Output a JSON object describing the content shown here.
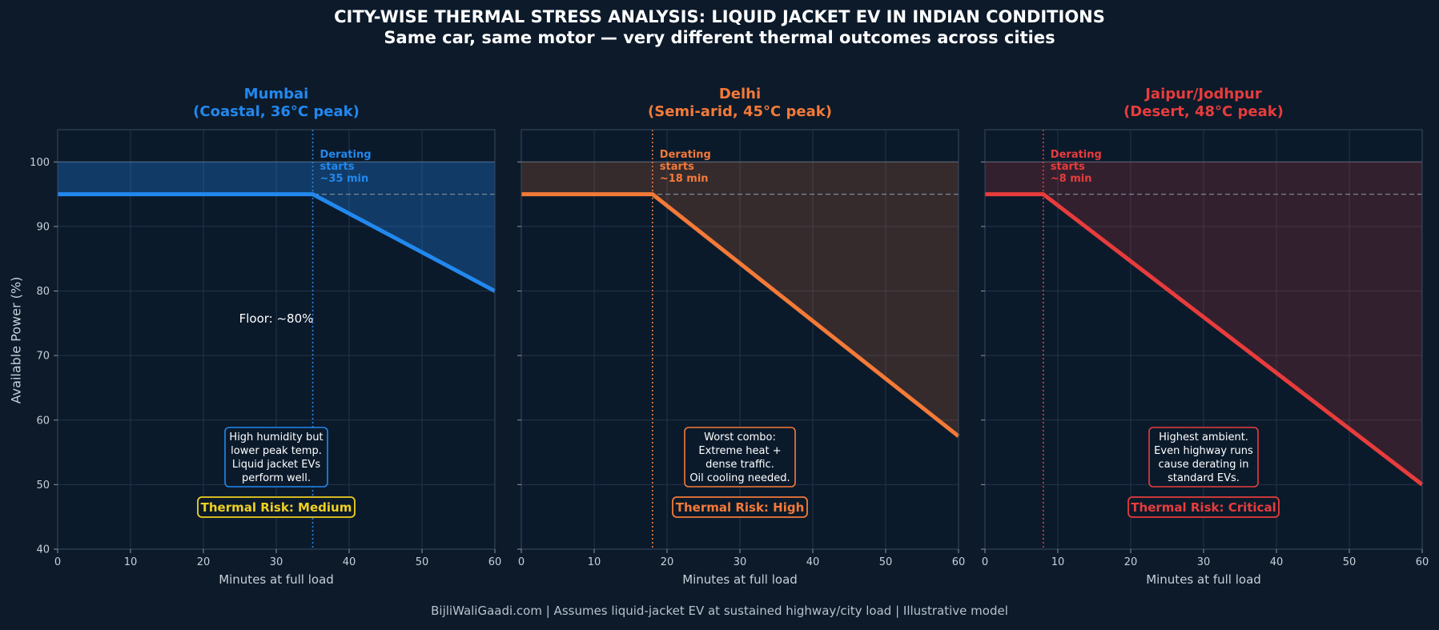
{
  "header": {
    "title": "CITY-WISE THERMAL STRESS ANALYSIS: LIQUID JACKET EV IN INDIAN CONDITIONS",
    "subtitle": "Same car, same motor — very different thermal outcomes across cities"
  },
  "footer": "BijliWaliGaadi.com | Assumes liquid-jacket EV at sustained highway/city load | Illustrative model",
  "ylabel": "Available Power (%)",
  "chart_data": [
    {
      "type": "line",
      "title": "Mumbai",
      "subtitle": "(Coastal, 36°C peak)",
      "color": "#2288ee",
      "xlabel": "Minutes at full load",
      "ylabel": "Available Power (%)",
      "xlim": [
        0,
        60
      ],
      "ylim": [
        40,
        105
      ],
      "xticks": [
        0,
        10,
        20,
        30,
        40,
        50,
        60
      ],
      "yticks": [
        40,
        50,
        60,
        70,
        80,
        90,
        100
      ],
      "grid": true,
      "series": [
        {
          "x": [
            0,
            35,
            60
          ],
          "y": [
            95,
            95,
            80
          ]
        }
      ],
      "reference_lines": {
        "max_power": 100,
        "baseline": 95,
        "derating_start_x": 35
      },
      "derating_annotation": [
        "Derating",
        "starts",
        "~35 min"
      ],
      "floor_label": "Floor: ~80%",
      "info_box": [
        "High humidity but",
        "lower peak temp.",
        "Liquid jacket EVs",
        "perform well."
      ],
      "risk_label": "Thermal Risk: Medium",
      "risk_color": "#f0d020"
    },
    {
      "type": "line",
      "title": "Delhi",
      "subtitle": "(Semi-arid, 45°C peak)",
      "color": "#f47a38",
      "xlabel": "Minutes at full load",
      "ylabel": "Available Power (%)",
      "xlim": [
        0,
        60
      ],
      "ylim": [
        40,
        105
      ],
      "xticks": [
        0,
        10,
        20,
        30,
        40,
        50,
        60
      ],
      "yticks": [
        40,
        50,
        60,
        70,
        80,
        90,
        100
      ],
      "grid": true,
      "series": [
        {
          "x": [
            0,
            18,
            60
          ],
          "y": [
            95,
            95,
            57.5
          ]
        }
      ],
      "reference_lines": {
        "max_power": 100,
        "baseline": 95,
        "derating_start_x": 18
      },
      "derating_annotation": [
        "Derating",
        "starts",
        "~18 min"
      ],
      "floor_label": "",
      "info_box": [
        "Worst combo:",
        "Extreme heat +",
        "dense traffic.",
        "Oil cooling needed."
      ],
      "risk_label": "Thermal Risk: High",
      "risk_color": "#f47a38"
    },
    {
      "type": "line",
      "title": "Jaipur/Jodhpur",
      "subtitle": "(Desert, 48°C peak)",
      "color": "#e83c3c",
      "xlabel": "Minutes at full load",
      "ylabel": "Available Power (%)",
      "xlim": [
        0,
        60
      ],
      "ylim": [
        40,
        105
      ],
      "xticks": [
        0,
        10,
        20,
        30,
        40,
        50,
        60
      ],
      "yticks": [
        40,
        50,
        60,
        70,
        80,
        90,
        100
      ],
      "grid": true,
      "series": [
        {
          "x": [
            0,
            8,
            60
          ],
          "y": [
            95,
            95,
            50
          ]
        }
      ],
      "reference_lines": {
        "max_power": 100,
        "baseline": 95,
        "derating_start_x": 8
      },
      "derating_annotation": [
        "Derating",
        "starts",
        "~8 min"
      ],
      "floor_label": "",
      "info_box": [
        "Highest ambient.",
        "Even highway runs",
        "cause derating in",
        "standard EVs."
      ],
      "risk_label": "Thermal Risk: Critical",
      "risk_color": "#e83c3c"
    }
  ]
}
